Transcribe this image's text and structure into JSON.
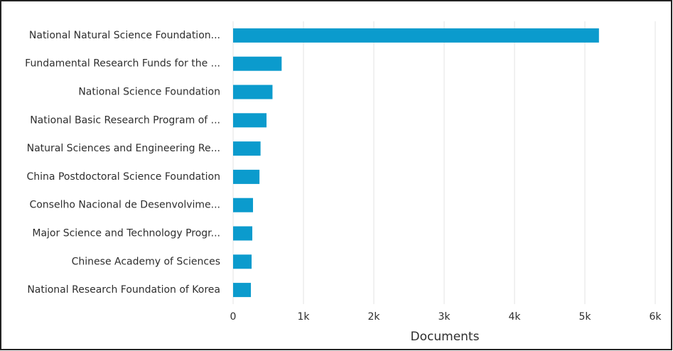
{
  "chart_data": {
    "type": "hbar",
    "categories": [
      "National Natural Science Foundation...",
      "Fundamental Research Funds for the ...",
      "National Science Foundation",
      "National Basic Research Program of ...",
      "Natural Sciences and Engineering Re...",
      "China Postdoctoral Science Foundation",
      "Conselho Nacional de Desenvolvime...",
      "Major Science and Technology Progr...",
      "Chinese Academy of Sciences",
      "National Research Foundation of Korea"
    ],
    "values": [
      5200,
      690,
      560,
      475,
      390,
      375,
      283,
      273,
      263,
      253
    ],
    "color": "#0b9bcd",
    "xlabel": "Documents",
    "xlim": [
      0,
      6000
    ],
    "xticks": [
      0,
      {
        "value": 1000,
        "label": "1k"
      },
      {
        "value": 2000,
        "label": "2k"
      },
      {
        "value": 3000,
        "label": "3k"
      },
      {
        "value": 4000,
        "label": "4k"
      },
      {
        "value": 5000,
        "label": "5k"
      },
      {
        "value": 6000,
        "label": "6k"
      }
    ],
    "grid": true
  }
}
